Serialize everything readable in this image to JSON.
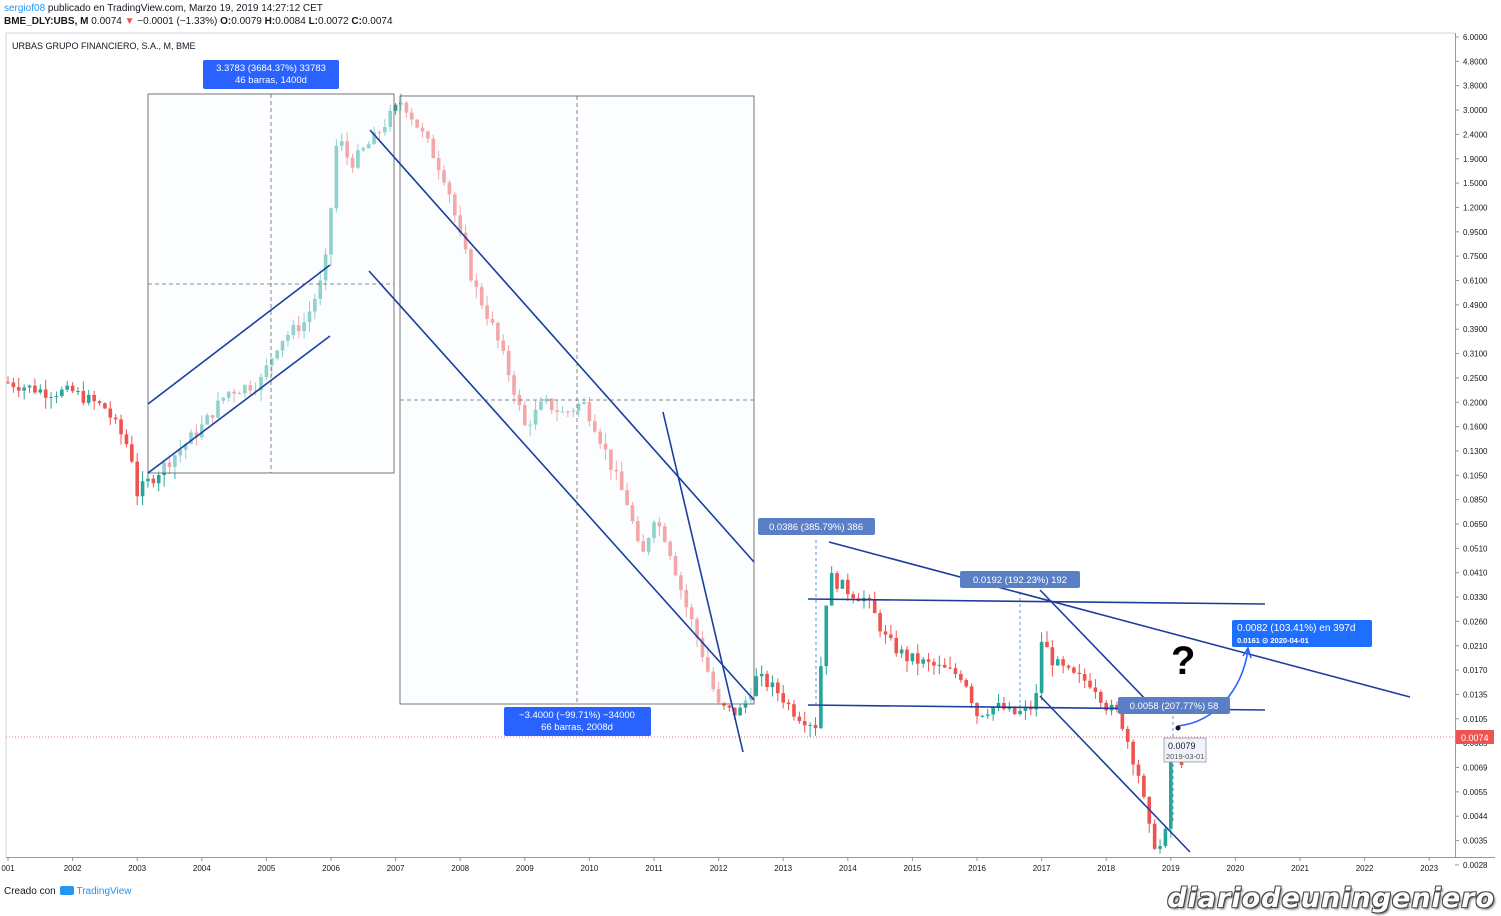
{
  "header": {
    "user": "sergiof08",
    "published": "publicado en TradingView.com, Marzo 19, 2019 14:27:12 CET",
    "symbol": "BME_DLY:UBS, M",
    "last": "0.0074",
    "change": "−0.0001 (−1.33%)",
    "o_label": "O:",
    "o": "0.0079",
    "h_label": "H:",
    "h": "0.0084",
    "l_label": "L:",
    "l": "0.0072",
    "c_label": "C:",
    "c": "0.0074"
  },
  "symbol_title": "URBAS GRUPO FINANCIERO, S.A., M, BME",
  "footer": {
    "created": "Creado con",
    "brand": "TradingView"
  },
  "watermark": "diariodeuningeniero",
  "colors": {
    "up": "#26a69a",
    "down": "#ef5350",
    "trend": "#1c3f9e",
    "label_bg": "#2962ff",
    "label_bg_muted": "#5b7fc6",
    "price_line": "#ef5350"
  },
  "chart_data": {
    "type": "candlestick",
    "scale": "log",
    "y_ticks": [
      "6.0000",
      "4.8000",
      "3.8000",
      "3.0000",
      "2.4000",
      "1.9000",
      "1.5000",
      "1.2000",
      "0.9500",
      "0.7500",
      "0.6100",
      "0.4900",
      "0.3900",
      "0.3100",
      "0.2500",
      "0.2000",
      "0.1600",
      "0.1300",
      "0.1050",
      "0.0850",
      "0.0650",
      "0.0510",
      "0.0410",
      "0.0330",
      "0.0260",
      "0.0210",
      "0.0170",
      "0.0135",
      "0.0105",
      "0.0085",
      "0.0069",
      "0.0055",
      "0.0044",
      "0.0035",
      "0.0028"
    ],
    "x_ticks": [
      "001",
      "2002",
      "2003",
      "2004",
      "2005",
      "2006",
      "2007",
      "2008",
      "2009",
      "2010",
      "2011",
      "2012",
      "2013",
      "2014",
      "2015",
      "2016",
      "2017",
      "2018",
      "2019",
      "2020",
      "2021",
      "2022",
      "2023"
    ],
    "current_price": "0.0074",
    "path": [
      [
        2001.0,
        0.24
      ],
      [
        2001.6,
        0.22
      ],
      [
        2002.0,
        0.22
      ],
      [
        2002.5,
        0.19
      ],
      [
        2002.9,
        0.13
      ],
      [
        2003.0,
        0.09
      ],
      [
        2003.5,
        0.12
      ],
      [
        2004.0,
        0.16
      ],
      [
        2004.4,
        0.22
      ],
      [
        2004.9,
        0.24
      ],
      [
        2005.2,
        0.35
      ],
      [
        2005.6,
        0.42
      ],
      [
        2005.9,
        0.65
      ],
      [
        2006.0,
        1.2
      ],
      [
        2006.1,
        2.4
      ],
      [
        2006.3,
        1.8
      ],
      [
        2006.6,
        2.2
      ],
      [
        2006.9,
        2.8
      ],
      [
        2007.1,
        3.3
      ],
      [
        2007.5,
        2.2
      ],
      [
        2007.8,
        1.5
      ],
      [
        2008.0,
        0.9
      ],
      [
        2008.2,
        0.6
      ],
      [
        2008.5,
        0.4
      ],
      [
        2008.8,
        0.24
      ],
      [
        2009.0,
        0.16
      ],
      [
        2009.3,
        0.2
      ],
      [
        2009.6,
        0.18
      ],
      [
        2009.9,
        0.2
      ],
      [
        2010.1,
        0.16
      ],
      [
        2010.3,
        0.12
      ],
      [
        2010.6,
        0.08
      ],
      [
        2010.8,
        0.045
      ],
      [
        2011.0,
        0.07
      ],
      [
        2011.2,
        0.055
      ],
      [
        2011.5,
        0.03
      ],
      [
        2011.8,
        0.018
      ],
      [
        2012.0,
        0.012
      ],
      [
        2012.3,
        0.011
      ],
      [
        2012.6,
        0.016
      ],
      [
        2012.9,
        0.014
      ],
      [
        2013.2,
        0.011
      ],
      [
        2013.5,
        0.01
      ],
      [
        2013.7,
        0.04
      ],
      [
        2014.0,
        0.035
      ],
      [
        2014.3,
        0.032
      ],
      [
        2014.6,
        0.022
      ],
      [
        2014.9,
        0.019
      ],
      [
        2015.2,
        0.018
      ],
      [
        2015.5,
        0.017
      ],
      [
        2015.8,
        0.016
      ],
      [
        2016.0,
        0.011
      ],
      [
        2016.3,
        0.012
      ],
      [
        2016.6,
        0.011
      ],
      [
        2016.9,
        0.012
      ],
      [
        2017.0,
        0.022
      ],
      [
        2017.2,
        0.018
      ],
      [
        2017.5,
        0.016
      ],
      [
        2017.8,
        0.015
      ],
      [
        2018.0,
        0.012
      ],
      [
        2018.2,
        0.011
      ],
      [
        2018.5,
        0.0065
      ],
      [
        2018.7,
        0.0035
      ],
      [
        2018.9,
        0.0032
      ],
      [
        2019.0,
        0.0079
      ],
      [
        2019.17,
        0.0074
      ]
    ]
  },
  "annotations": {
    "measure1_l1": "3.3783 (3684.37%) 33783",
    "measure1_l2": "46 barras, 1400d",
    "measure2_l1": "−3.4000 (−99.71%) −34000",
    "measure2_l2": "66 barras, 2008d",
    "range1": "0.0386 (385.79%) 386",
    "range2": "0.0192 (192.23%) 192",
    "range3": "0.0058 (207.77%) 58",
    "proj_l1": "0.0082 (103.41%) en 397d",
    "proj_l2": "0.0161 ⊙ 2020-04-01",
    "question": "?",
    "tooltip_price": "0.0079",
    "tooltip_date": "2019-03-01"
  }
}
